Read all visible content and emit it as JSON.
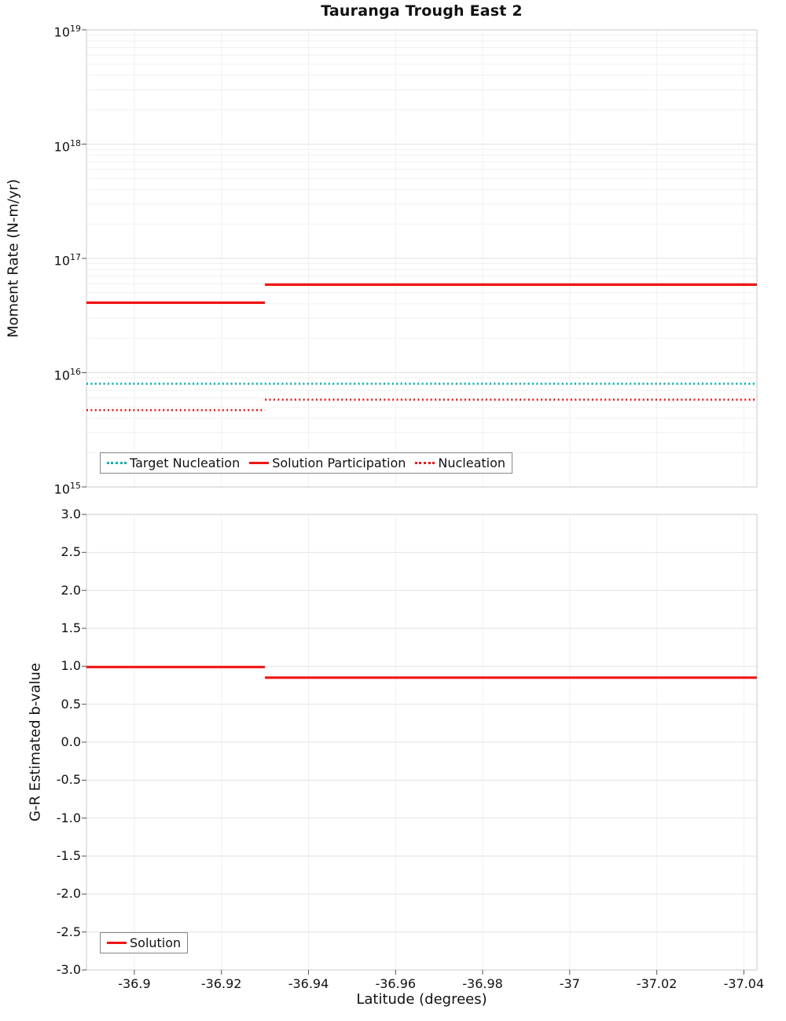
{
  "title": "Tauranga Trough East 2",
  "colors": {
    "red": "#f01515",
    "teal": "#00b3b3",
    "grid_minor": "#f0f0f0",
    "grid_major": "#e2e2e2",
    "border": "#c9c9c9",
    "tick": "#555555"
  },
  "chart_data": [
    {
      "type": "line",
      "panel": "moment-rate",
      "title": "Tauranga Trough East 2",
      "ylabel": "Moment Rate (N-m/yr)",
      "yscale": "log",
      "ytick_exponents": [
        15,
        16,
        17,
        18,
        19
      ],
      "x_domain": [
        -36.889,
        -37.043
      ],
      "legend_position": "bottom-left-inside",
      "series": [
        {
          "name": "Target Nucleation",
          "color": "teal",
          "dash": "dotted",
          "segments": [
            {
              "x0": -36.889,
              "x1": -37.043,
              "y": 8000000000000000.0
            }
          ]
        },
        {
          "name": "Solution Participation",
          "color": "red",
          "dash": "solid",
          "segments": [
            {
              "x0": -36.889,
              "x1": -36.93,
              "y": 4.1e+16
            },
            {
              "x0": -36.93,
              "x1": -37.043,
              "y": 5.9e+16
            }
          ]
        },
        {
          "name": "Nucleation",
          "color": "red",
          "dash": "dotted",
          "segments": [
            {
              "x0": -36.889,
              "x1": -36.93,
              "y": 4700000000000000.0
            },
            {
              "x0": -36.93,
              "x1": -37.043,
              "y": 5800000000000000.0
            }
          ]
        }
      ],
      "legend": [
        "Target Nucleation",
        "Solution Participation",
        "Nucleation"
      ]
    },
    {
      "type": "line",
      "panel": "b-value",
      "ylabel": "G-R Estimated b-value",
      "yscale": "linear",
      "ylim": [
        -3.0,
        3.0
      ],
      "ytick_step": 0.5,
      "x_domain": [
        -36.889,
        -37.043
      ],
      "xlabel": "Latitude (degrees)",
      "xticks": [
        -36.9,
        -36.92,
        -36.94,
        -36.96,
        -36.98,
        -37,
        -37.02,
        -37.04
      ],
      "legend_position": "bottom-left-inside",
      "series": [
        {
          "name": "Solution",
          "color": "red",
          "dash": "solid",
          "segments": [
            {
              "x0": -36.889,
              "x1": -36.93,
              "y": 0.99
            },
            {
              "x0": -36.93,
              "x1": -37.043,
              "y": 0.85
            }
          ]
        }
      ],
      "legend": [
        "Solution"
      ]
    }
  ]
}
